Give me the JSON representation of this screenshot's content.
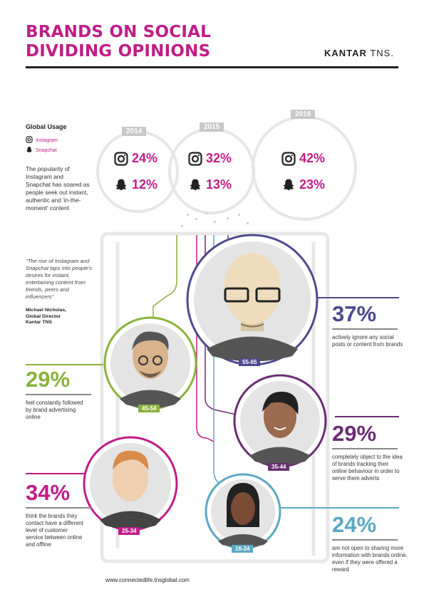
{
  "header": {
    "title_line1": "BRANDS ON SOCIAL",
    "title_line2": "DIVIDING OPINIONS",
    "logo_bold": "KANTAR",
    "logo_light": "TNS."
  },
  "global_usage": {
    "title": "Global Usage",
    "legend_instagram": "Instagram",
    "legend_snapchat": "Snapchat",
    "intro": "The popularity of Instagram and Snapchat has soared as people seek out instant, authentic and 'in-the-moment' content",
    "years": [
      {
        "year": "2014",
        "instagram": "24%",
        "snapchat": "12%"
      },
      {
        "year": "2015",
        "instagram": "32%",
        "snapchat": "13%"
      },
      {
        "year": "2016",
        "instagram": "42%",
        "snapchat": "23%"
      }
    ]
  },
  "quote": {
    "text": "\"The rise of Instagram and Snapchat taps into people's desires for instant, entertaining content from friends, peers and influencers\"",
    "author_line1": "Michael Nicholas,",
    "author_line2": "Global Director",
    "author_line3": "Kantar TNS"
  },
  "segments": [
    {
      "age": "55-65",
      "stat": "37%",
      "text": "actively ignore any social posts or content from brands",
      "color": "#4d4a8e"
    },
    {
      "age": "45-54",
      "stat": "29%",
      "text": "feel constantly followed by brand advertising online",
      "color": "#8ab23c"
    },
    {
      "age": "35-44",
      "stat": "29%",
      "text": "completely object to the idea of brands tracking their online behaviour in order to serve them adverts",
      "color": "#6b2d74"
    },
    {
      "age": "25-34",
      "stat": "34%",
      "text": "think the brands they contact have a different level of customer service between online and offline",
      "color": "#c01d87"
    },
    {
      "age": "16-24",
      "stat": "24%",
      "text": "are not open to sharing more information with brands online, even if they were offered a reward",
      "color": "#5ba8c4"
    }
  ],
  "footer": {
    "url": "www.connectedlife.tnsglobal.com"
  },
  "colors": {
    "magenta": "#c01d87",
    "grey": "#e6e6e6"
  }
}
